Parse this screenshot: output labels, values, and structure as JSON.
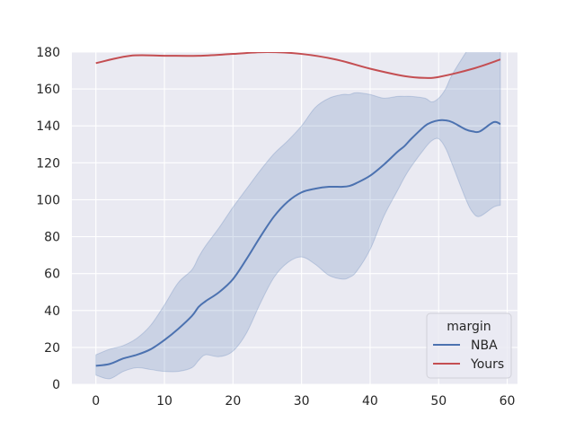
{
  "chart_data": {
    "type": "line",
    "title": "",
    "xlabel": "",
    "ylabel": "",
    "xlim": [
      -3.5,
      61.5
    ],
    "ylim": [
      0,
      180
    ],
    "xticks": [
      0,
      10,
      20,
      30,
      40,
      50,
      60
    ],
    "yticks": [
      0,
      20,
      40,
      60,
      80,
      100,
      120,
      140,
      160,
      180
    ],
    "grid": true,
    "background": "#eaeaf2",
    "legend": {
      "title": "margin",
      "position": "lower-right"
    },
    "series": [
      {
        "name": "NBA",
        "color": "#4c72b0",
        "x": [
          0,
          2,
          4,
          6,
          8,
          10,
          12,
          14,
          15,
          16,
          18,
          20,
          22,
          24,
          26,
          28,
          30,
          32,
          34,
          36,
          37,
          38,
          40,
          42,
          44,
          45,
          46,
          48,
          49,
          50,
          51,
          52,
          54,
          55,
          56,
          58,
          59
        ],
        "y": [
          10,
          11,
          14,
          16,
          19,
          24,
          30,
          37,
          42,
          45,
          50,
          57,
          68,
          80,
          91,
          99,
          104,
          106,
          107,
          107,
          107.5,
          109,
          113,
          119,
          126,
          129,
          133,
          140,
          142,
          143,
          143,
          142,
          138,
          137,
          137,
          142,
          141
        ],
        "band_upper": [
          16,
          19,
          21,
          25,
          32,
          43,
          55,
          62,
          69,
          75,
          85,
          96,
          106,
          116,
          125,
          132,
          140,
          150,
          155,
          157,
          157,
          158,
          157,
          155,
          156,
          156,
          156,
          155,
          153,
          155,
          160,
          168,
          180,
          186,
          190,
          196,
          200
        ],
        "band_lower": [
          5,
          3,
          7,
          9,
          8,
          7,
          7,
          9,
          13,
          16,
          15,
          18,
          28,
          44,
          58,
          66,
          69,
          65,
          59,
          57,
          58,
          61,
          73,
          91,
          105,
          112,
          118,
          128,
          132,
          133,
          128,
          119,
          100,
          93,
          91,
          96,
          97
        ]
      },
      {
        "name": "Yours",
        "color": "#c44e52",
        "x": [
          0,
          5,
          10,
          15,
          20,
          25,
          30,
          35,
          40,
          45,
          48,
          50,
          55,
          59
        ],
        "y": [
          174,
          178,
          178,
          178,
          179,
          180,
          179,
          176,
          171,
          167,
          166,
          166.5,
          171,
          176
        ]
      }
    ]
  }
}
